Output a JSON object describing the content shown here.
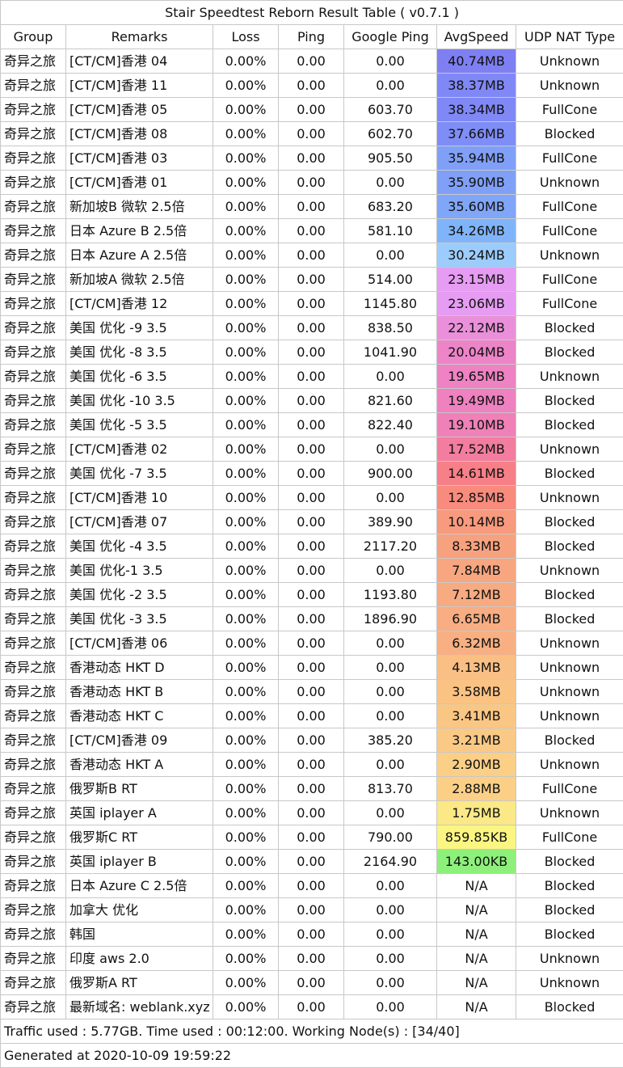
{
  "title": "Stair Speedtest Reborn Result Table ( v0.7.1 )",
  "columns": [
    "Group",
    "Remarks",
    "Loss",
    "Ping",
    "Google Ping",
    "AvgSpeed",
    "UDP NAT Type"
  ],
  "speed_colors": {
    "40.74MB": "#7f7ff4",
    "38.37MB": "#8088f6",
    "38.34MB": "#8088f6",
    "37.66MB": "#7f8df6",
    "35.94MB": "#80a0f8",
    "35.90MB": "#80a0f8",
    "35.60MB": "#80a6f9",
    "34.26MB": "#80b4fa",
    "30.24MB": "#9cccfc",
    "23.15MB": "#e69cf2",
    "23.06MB": "#e69cf2",
    "22.12MB": "#ea90da",
    "20.04MB": "#ed84c8",
    "19.65MB": "#ee82c3",
    "19.49MB": "#ef81c0",
    "19.10MB": "#f080b8",
    "17.52MB": "#f37d9f",
    "14.61MB": "#f67f88",
    "12.85MB": "#f78b7d",
    "10.14MB": "#f79a7d",
    "8.33MB": "#f7a27f",
    "7.84MB": "#f8a680",
    "7.12MB": "#f8aa80",
    "6.65MB": "#f8ad82",
    "6.32MB": "#f8b082",
    "4.13MB": "#f9bf84",
    "3.58MB": "#fac384",
    "3.41MB": "#fac684",
    "3.21MB": "#fac985",
    "2.90MB": "#fbcf86",
    "2.88MB": "#fbd086",
    "1.75MB": "#fbe886",
    "859.85KB": "#fbf582",
    "143.00KB": "#8df07b",
    "N/A": "#ffffff"
  },
  "rows": [
    {
      "group": "奇异之旅",
      "remarks": "[CT/CM]香港 04",
      "loss": "0.00%",
      "ping": "0.00",
      "google_ping": "0.00",
      "speed": "40.74MB",
      "nat": "Unknown"
    },
    {
      "group": "奇异之旅",
      "remarks": "[CT/CM]香港 11",
      "loss": "0.00%",
      "ping": "0.00",
      "google_ping": "0.00",
      "speed": "38.37MB",
      "nat": "Unknown"
    },
    {
      "group": "奇异之旅",
      "remarks": "[CT/CM]香港 05",
      "loss": "0.00%",
      "ping": "0.00",
      "google_ping": "603.70",
      "speed": "38.34MB",
      "nat": "FullCone"
    },
    {
      "group": "奇异之旅",
      "remarks": "[CT/CM]香港 08",
      "loss": "0.00%",
      "ping": "0.00",
      "google_ping": "602.70",
      "speed": "37.66MB",
      "nat": "Blocked"
    },
    {
      "group": "奇异之旅",
      "remarks": "[CT/CM]香港 03",
      "loss": "0.00%",
      "ping": "0.00",
      "google_ping": "905.50",
      "speed": "35.94MB",
      "nat": "FullCone"
    },
    {
      "group": "奇异之旅",
      "remarks": "[CT/CM]香港 01",
      "loss": "0.00%",
      "ping": "0.00",
      "google_ping": "0.00",
      "speed": "35.90MB",
      "nat": "Unknown"
    },
    {
      "group": "奇异之旅",
      "remarks": "新加坡B 微软 2.5倍",
      "loss": "0.00%",
      "ping": "0.00",
      "google_ping": "683.20",
      "speed": "35.60MB",
      "nat": "FullCone"
    },
    {
      "group": "奇异之旅",
      "remarks": "日本 Azure B 2.5倍",
      "loss": "0.00%",
      "ping": "0.00",
      "google_ping": "581.10",
      "speed": "34.26MB",
      "nat": "FullCone"
    },
    {
      "group": "奇异之旅",
      "remarks": "日本 Azure A 2.5倍",
      "loss": "0.00%",
      "ping": "0.00",
      "google_ping": "0.00",
      "speed": "30.24MB",
      "nat": "Unknown"
    },
    {
      "group": "奇异之旅",
      "remarks": "新加坡A 微软 2.5倍",
      "loss": "0.00%",
      "ping": "0.00",
      "google_ping": "514.00",
      "speed": "23.15MB",
      "nat": "FullCone"
    },
    {
      "group": "奇异之旅",
      "remarks": "[CT/CM]香港 12",
      "loss": "0.00%",
      "ping": "0.00",
      "google_ping": "1145.80",
      "speed": "23.06MB",
      "nat": "FullCone"
    },
    {
      "group": "奇异之旅",
      "remarks": "美国 优化 -9 3.5",
      "loss": "0.00%",
      "ping": "0.00",
      "google_ping": "838.50",
      "speed": "22.12MB",
      "nat": "Blocked"
    },
    {
      "group": "奇异之旅",
      "remarks": "美国 优化 -8 3.5",
      "loss": "0.00%",
      "ping": "0.00",
      "google_ping": "1041.90",
      "speed": "20.04MB",
      "nat": "Blocked"
    },
    {
      "group": "奇异之旅",
      "remarks": "美国 优化 -6 3.5",
      "loss": "0.00%",
      "ping": "0.00",
      "google_ping": "0.00",
      "speed": "19.65MB",
      "nat": "Unknown"
    },
    {
      "group": "奇异之旅",
      "remarks": "美国 优化 -10 3.5",
      "loss": "0.00%",
      "ping": "0.00",
      "google_ping": "821.60",
      "speed": "19.49MB",
      "nat": "Blocked"
    },
    {
      "group": "奇异之旅",
      "remarks": "美国 优化 -5 3.5",
      "loss": "0.00%",
      "ping": "0.00",
      "google_ping": "822.40",
      "speed": "19.10MB",
      "nat": "Blocked"
    },
    {
      "group": "奇异之旅",
      "remarks": "[CT/CM]香港 02",
      "loss": "0.00%",
      "ping": "0.00",
      "google_ping": "0.00",
      "speed": "17.52MB",
      "nat": "Unknown"
    },
    {
      "group": "奇异之旅",
      "remarks": "美国 优化 -7 3.5",
      "loss": "0.00%",
      "ping": "0.00",
      "google_ping": "900.00",
      "speed": "14.61MB",
      "nat": "Blocked"
    },
    {
      "group": "奇异之旅",
      "remarks": "[CT/CM]香港 10",
      "loss": "0.00%",
      "ping": "0.00",
      "google_ping": "0.00",
      "speed": "12.85MB",
      "nat": "Unknown"
    },
    {
      "group": "奇异之旅",
      "remarks": "[CT/CM]香港 07",
      "loss": "0.00%",
      "ping": "0.00",
      "google_ping": "389.90",
      "speed": "10.14MB",
      "nat": "Blocked"
    },
    {
      "group": "奇异之旅",
      "remarks": "美国 优化 -4 3.5",
      "loss": "0.00%",
      "ping": "0.00",
      "google_ping": "2117.20",
      "speed": "8.33MB",
      "nat": "Blocked"
    },
    {
      "group": "奇异之旅",
      "remarks": "美国 优化-1 3.5",
      "loss": "0.00%",
      "ping": "0.00",
      "google_ping": "0.00",
      "speed": "7.84MB",
      "nat": "Unknown"
    },
    {
      "group": "奇异之旅",
      "remarks": "美国 优化 -2 3.5",
      "loss": "0.00%",
      "ping": "0.00",
      "google_ping": "1193.80",
      "speed": "7.12MB",
      "nat": "Blocked"
    },
    {
      "group": "奇异之旅",
      "remarks": "美国 优化 -3 3.5",
      "loss": "0.00%",
      "ping": "0.00",
      "google_ping": "1896.90",
      "speed": "6.65MB",
      "nat": "Blocked"
    },
    {
      "group": "奇异之旅",
      "remarks": "[CT/CM]香港 06",
      "loss": "0.00%",
      "ping": "0.00",
      "google_ping": "0.00",
      "speed": "6.32MB",
      "nat": "Unknown"
    },
    {
      "group": "奇异之旅",
      "remarks": "香港动态 HKT D",
      "loss": "0.00%",
      "ping": "0.00",
      "google_ping": "0.00",
      "speed": "4.13MB",
      "nat": "Unknown"
    },
    {
      "group": "奇异之旅",
      "remarks": "香港动态 HKT B",
      "loss": "0.00%",
      "ping": "0.00",
      "google_ping": "0.00",
      "speed": "3.58MB",
      "nat": "Unknown"
    },
    {
      "group": "奇异之旅",
      "remarks": "香港动态 HKT C",
      "loss": "0.00%",
      "ping": "0.00",
      "google_ping": "0.00",
      "speed": "3.41MB",
      "nat": "Unknown"
    },
    {
      "group": "奇异之旅",
      "remarks": "[CT/CM]香港 09",
      "loss": "0.00%",
      "ping": "0.00",
      "google_ping": "385.20",
      "speed": "3.21MB",
      "nat": "Blocked"
    },
    {
      "group": "奇异之旅",
      "remarks": "香港动态 HKT A",
      "loss": "0.00%",
      "ping": "0.00",
      "google_ping": "0.00",
      "speed": "2.90MB",
      "nat": "Unknown"
    },
    {
      "group": "奇异之旅",
      "remarks": "俄罗斯B RT",
      "loss": "0.00%",
      "ping": "0.00",
      "google_ping": "813.70",
      "speed": "2.88MB",
      "nat": "FullCone"
    },
    {
      "group": "奇异之旅",
      "remarks": "英国 iplayer A",
      "loss": "0.00%",
      "ping": "0.00",
      "google_ping": "0.00",
      "speed": "1.75MB",
      "nat": "Unknown"
    },
    {
      "group": "奇异之旅",
      "remarks": "俄罗斯C RT",
      "loss": "0.00%",
      "ping": "0.00",
      "google_ping": "790.00",
      "speed": "859.85KB",
      "nat": "FullCone"
    },
    {
      "group": "奇异之旅",
      "remarks": "英国 iplayer B",
      "loss": "0.00%",
      "ping": "0.00",
      "google_ping": "2164.90",
      "speed": "143.00KB",
      "nat": "Blocked"
    },
    {
      "group": "奇异之旅",
      "remarks": "日本 Azure C 2.5倍",
      "loss": "0.00%",
      "ping": "0.00",
      "google_ping": "0.00",
      "speed": "N/A",
      "nat": "Blocked"
    },
    {
      "group": "奇异之旅",
      "remarks": "加拿大 优化",
      "loss": "0.00%",
      "ping": "0.00",
      "google_ping": "0.00",
      "speed": "N/A",
      "nat": "Blocked"
    },
    {
      "group": "奇异之旅",
      "remarks": "韩国",
      "loss": "0.00%",
      "ping": "0.00",
      "google_ping": "0.00",
      "speed": "N/A",
      "nat": "Blocked"
    },
    {
      "group": "奇异之旅",
      "remarks": "印度 aws 2.0",
      "loss": "0.00%",
      "ping": "0.00",
      "google_ping": "0.00",
      "speed": "N/A",
      "nat": "Unknown"
    },
    {
      "group": "奇异之旅",
      "remarks": "俄罗斯A RT",
      "loss": "0.00%",
      "ping": "0.00",
      "google_ping": "0.00",
      "speed": "N/A",
      "nat": "Unknown"
    },
    {
      "group": "奇异之旅",
      "remarks": "最新域名: weblank.xyz",
      "loss": "0.00%",
      "ping": "0.00",
      "google_ping": "0.00",
      "speed": "N/A",
      "nat": "Blocked"
    }
  ],
  "footer": {
    "summary": "Traffic used : 5.77GB. Time used : 00:12:00. Working Node(s) : [34/40]",
    "generated": "Generated at 2020-10-09 19:59:22"
  }
}
